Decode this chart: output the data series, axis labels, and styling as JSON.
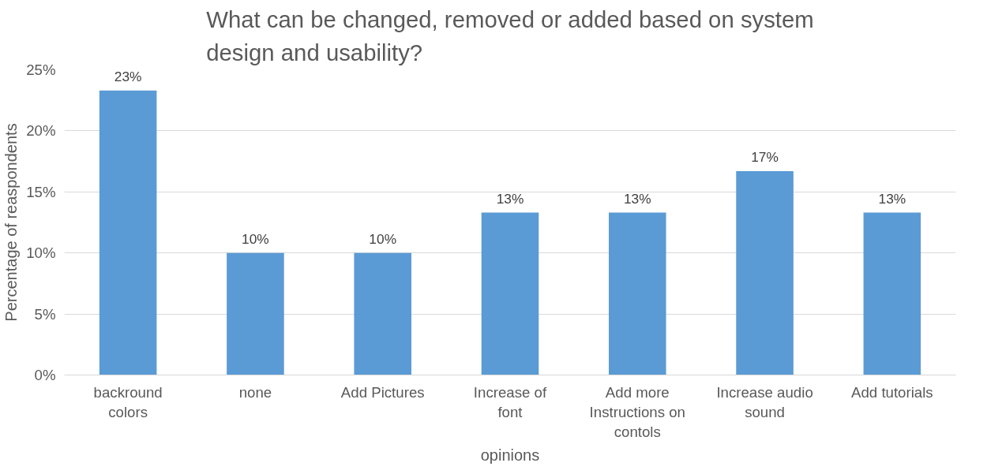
{
  "chart_data": {
    "type": "bar",
    "title": "What can be changed, removed or added based on system design and usability?",
    "xlabel": "opinions",
    "ylabel": "Percentage of reaspondents",
    "categories": [
      "backround colors",
      "none",
      "Add Pictures",
      "Increase of font",
      "Add more Instructions on contols",
      "Increase audio sound",
      "Add tutorials"
    ],
    "values": [
      23.3,
      10,
      10,
      13.3,
      13.3,
      16.7,
      13.3
    ],
    "value_labels": [
      "23%",
      "10%",
      "10%",
      "13%",
      "13%",
      "17%",
      "13%"
    ],
    "color": "#5b9bd5",
    "ylim": [
      0,
      25
    ],
    "yticks": [
      {
        "value": 0,
        "label": "0%"
      },
      {
        "value": 5,
        "label": "5%"
      },
      {
        "value": 10,
        "label": "10%"
      },
      {
        "value": 15,
        "label": "15%"
      },
      {
        "value": 20,
        "label": "20%"
      },
      {
        "value": 25,
        "label": "25%"
      }
    ],
    "grid": "y"
  }
}
